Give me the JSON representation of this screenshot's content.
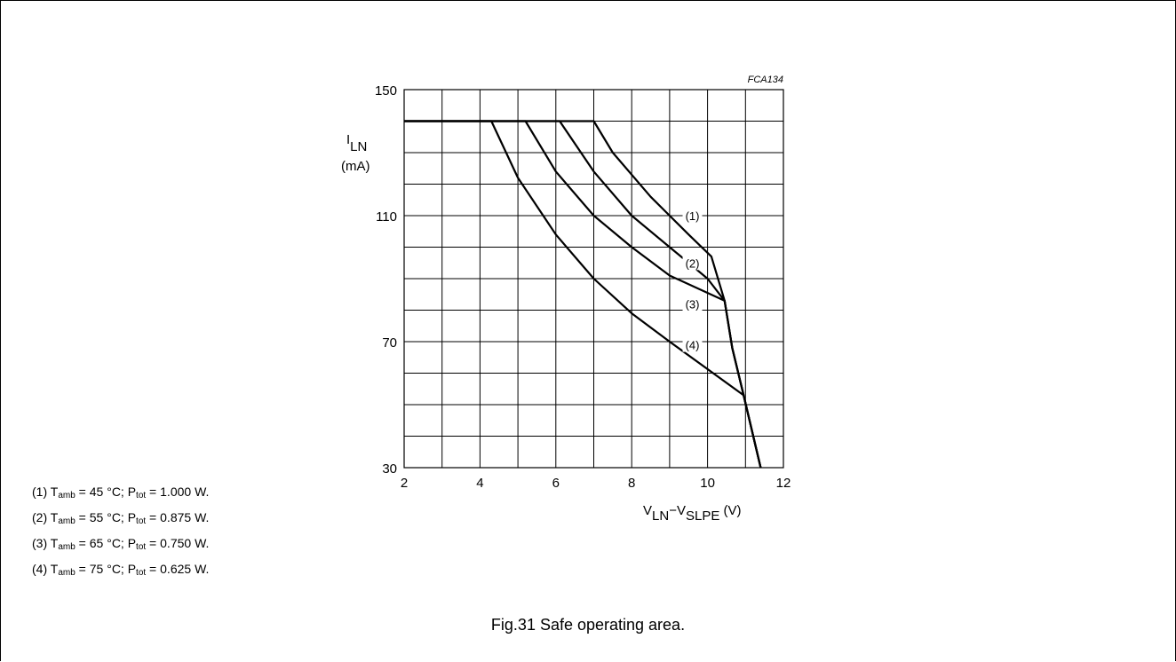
{
  "figure": {
    "caption": "Fig.31  Safe operating area.",
    "code": "FCA134"
  },
  "notes": [
    {
      "num": "(1)",
      "temp": "45",
      "ptot": "1.000"
    },
    {
      "num": "(2)",
      "temp": "55",
      "ptot": "0.875"
    },
    {
      "num": "(3)",
      "temp": "65",
      "ptot": "0.750"
    },
    {
      "num": "(4)",
      "temp": "75",
      "ptot": "0.625"
    }
  ],
  "chart_data": {
    "type": "line",
    "title": "",
    "ylabel": {
      "symbol": "I",
      "sub": "LN",
      "unit": "(mA)"
    },
    "xlabel": {
      "v1": "V",
      "s1": "LN",
      "dash": "−",
      "v2": "V",
      "s2": "SLPE",
      "unit": "(V)"
    },
    "xlim": [
      2,
      12
    ],
    "ylim": [
      30,
      150
    ],
    "xticks": [
      2,
      4,
      6,
      8,
      10,
      12
    ],
    "yticks": [
      30,
      70,
      110,
      150
    ],
    "grid": true,
    "series": [
      {
        "name": "(1)",
        "points": [
          [
            2,
            140
          ],
          [
            7.0,
            140
          ],
          [
            7.5,
            130
          ],
          [
            8.5,
            116
          ],
          [
            9.0,
            110
          ],
          [
            9.5,
            104
          ],
          [
            10.1,
            97
          ],
          [
            10.45,
            83
          ],
          [
            10.65,
            68
          ],
          [
            10.95,
            53
          ],
          [
            11.4,
            30
          ]
        ]
      },
      {
        "name": "(2)",
        "points": [
          [
            2,
            140
          ],
          [
            5.2,
            140
          ],
          [
            6.0,
            124
          ],
          [
            7.0,
            110
          ],
          [
            8.0,
            100
          ],
          [
            9.0,
            91
          ],
          [
            10.45,
            83
          ],
          [
            10.65,
            68
          ],
          [
            10.95,
            53
          ],
          [
            11.4,
            30
          ]
        ]
      },
      {
        "name": "(3)",
        "points": [
          [
            2,
            140
          ],
          [
            6.1,
            140
          ],
          [
            7.0,
            124
          ],
          [
            8.0,
            110
          ],
          [
            9.0,
            100
          ],
          [
            10.0,
            90
          ],
          [
            10.45,
            83
          ],
          [
            10.65,
            68
          ],
          [
            10.95,
            53
          ],
          [
            11.4,
            30
          ]
        ]
      },
      {
        "name": "(4)",
        "points": [
          [
            2,
            140
          ],
          [
            4.3,
            140
          ],
          [
            5.0,
            122
          ],
          [
            6.0,
            104
          ],
          [
            7.0,
            90
          ],
          [
            8.0,
            79
          ],
          [
            9.0,
            70
          ],
          [
            10.95,
            53
          ],
          [
            11.4,
            30
          ]
        ]
      }
    ],
    "curve_labels": [
      {
        "text": "(1)",
        "x": 9.6,
        "y": 110
      },
      {
        "text": "(2)",
        "x": 9.6,
        "y": 95
      },
      {
        "text": "(3)",
        "x": 9.6,
        "y": 82
      },
      {
        "text": "(4)",
        "x": 9.6,
        "y": 69
      }
    ]
  }
}
